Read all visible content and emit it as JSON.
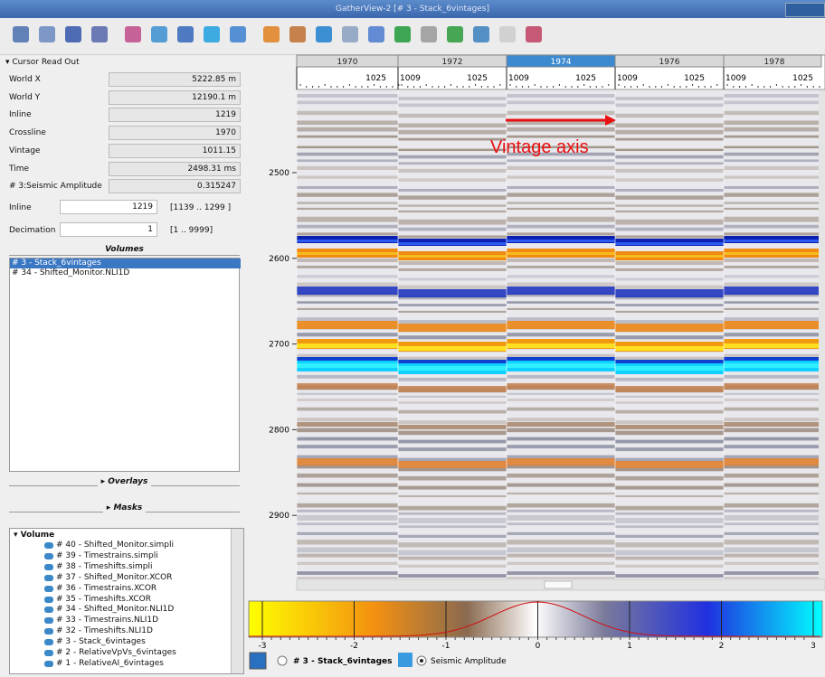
{
  "window": {
    "title": "GatherView-2 [# 3 - Stack_6vintages]"
  },
  "cursor_readout": {
    "header": "Cursor Read Out",
    "rows": [
      {
        "label": "World X",
        "value": "5222.85 m"
      },
      {
        "label": "World Y",
        "value": "12190.1 m"
      },
      {
        "label": "Inline",
        "value": "1219"
      },
      {
        "label": "Crossline",
        "value": "1970"
      },
      {
        "label": "Vintage",
        "value": "1011.15"
      },
      {
        "label": "Time",
        "value": "2498.31 ms"
      },
      {
        "label": "# 3:Seismic Amplitude",
        "value": "0.315247"
      }
    ]
  },
  "inline": {
    "label": "Inline",
    "value": "1219",
    "range": "[1139 .. 1299 ]"
  },
  "decimation": {
    "label": "Decimation",
    "value": "1",
    "range": "[1 .. 9999]"
  },
  "volumes": {
    "header": "Volumes",
    "items": [
      "# 3 - Stack_6vintages",
      "# 34 - Shifted_Monitor.NLI1D"
    ],
    "selected": 0
  },
  "overlays": "Overlays",
  "masks": "Masks",
  "tree": {
    "root": "Volume",
    "items": [
      "# 40 - Shifted_Monitor.simpli",
      "# 39 - Timestrains.simpli",
      "# 38 - Timeshifts.simpli",
      "# 37 - Shifted_Monitor.XCOR",
      "# 36 - Timestrains.XCOR",
      "# 35 - Timeshifts.XCOR",
      "# 34 - Shifted_Monitor.NLI1D",
      "# 33 - Timestrains.NLI1D",
      "# 32 - Timeshifts.NLI1D",
      "# 3 - Stack_6vintages",
      "# 2 - RelativeVpVs_6vintages",
      "# 1 - RelativeAI_6vintages"
    ]
  },
  "vintage_header": {
    "vintages": [
      "1970",
      "1972",
      "1974",
      "1976",
      "1978"
    ],
    "selected": 2,
    "trace_first": "1009",
    "trace_last": "1025"
  },
  "time_axis": {
    "ticks": [
      "2500",
      "2600",
      "2700",
      "2800",
      "2900"
    ]
  },
  "annotation": "Vintage axis",
  "colorbar": {
    "ticks": [
      "-3",
      "-2",
      "-1",
      "0",
      "1",
      "2",
      "3"
    ],
    "volume": "# 3 - Stack_6vintages",
    "attribute": "Seismic Amplitude"
  }
}
